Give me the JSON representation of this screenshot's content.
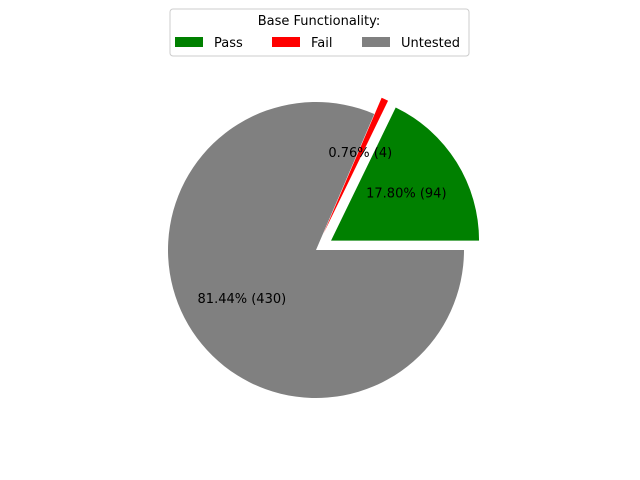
{
  "chart_data": {
    "type": "pie",
    "legend": {
      "title": "Base Functionality:",
      "placement": "top-center",
      "columns": 3
    },
    "slices": [
      {
        "label": "Pass",
        "value": 94,
        "percent": 17.8,
        "percent_label": "17.80%  (94)",
        "color": "#008000",
        "exploded": true
      },
      {
        "label": "Fail",
        "value": 4,
        "percent": 0.76,
        "percent_label": "0.76%  (4)",
        "color": "#ff0000",
        "exploded": true
      },
      {
        "label": "Untested",
        "value": 430,
        "percent": 81.44,
        "percent_label": "81.44%  (430)",
        "color": "#808080",
        "exploded": false
      }
    ]
  }
}
